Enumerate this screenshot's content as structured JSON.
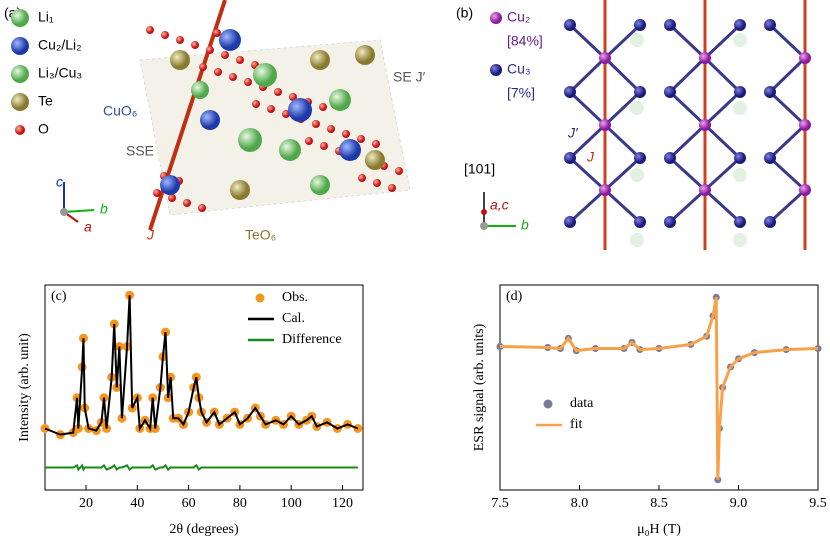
{
  "panel_a": {
    "label": "(a)",
    "legend": [
      "Li₁",
      "Cu₂/Li₂",
      "Li₃/Cu₃",
      "Te",
      "O"
    ],
    "annotations": {
      "cuo6": "CuO₆",
      "sse": "SSE",
      "j": "J",
      "teo6": "TeO₆",
      "se": "SE J′"
    },
    "axes": {
      "c": "c",
      "b": "b",
      "a": "a"
    }
  },
  "panel_b": {
    "label": "(b)",
    "legend": [
      {
        "name": "Cu₂",
        "fraction": "[84%]"
      },
      {
        "name": "Cu₃",
        "fraction": "[7%]"
      }
    ],
    "annotations": {
      "jp": "J′",
      "j": "J"
    },
    "axes": {
      "up": "[101]",
      "ac": "a,c",
      "b": "b"
    }
  },
  "chart_data": [
    {
      "type": "line",
      "panel_label": "(c)",
      "x_label": "2θ (degrees)",
      "y_label": "Intensity (arb. unit)",
      "xlim": [
        4,
        128
      ],
      "ylim": [
        0,
        100
      ],
      "xticks": [
        20,
        40,
        60,
        80,
        100,
        120
      ],
      "x": [
        4,
        10,
        15,
        16.5,
        17,
        18.5,
        19,
        19.5,
        21,
        24,
        26,
        27,
        28,
        30,
        31,
        32,
        33,
        34,
        36,
        37,
        38,
        40,
        41,
        43,
        45,
        46,
        47,
        49,
        50,
        51,
        52,
        53,
        54,
        56,
        58,
        60,
        62,
        63,
        64,
        65,
        67,
        70,
        72,
        75,
        78,
        80,
        83,
        86,
        88,
        90,
        94,
        97,
        100,
        103,
        106,
        108,
        110,
        114,
        118,
        122,
        126
      ],
      "series": [
        {
          "name": "Obs.",
          "color": "#f7941d",
          "mode": "markers",
          "values": [
            30,
            27,
            28,
            45,
            30,
            60,
            74,
            40,
            30,
            29,
            33,
            45,
            30,
            55,
            81,
            50,
            70,
            35,
            70,
            95,
            40,
            45,
            30,
            34,
            30,
            45,
            30,
            50,
            65,
            77,
            45,
            55,
            35,
            35,
            32,
            38,
            50,
            55,
            45,
            38,
            33,
            38,
            32,
            35,
            38,
            32,
            35,
            40,
            36,
            32,
            34,
            32,
            36,
            32,
            34,
            36,
            31,
            33,
            30,
            32,
            30
          ]
        },
        {
          "name": "Cal.",
          "color": "#000000",
          "mode": "line",
          "values": [
            30,
            27,
            28,
            45,
            30,
            60,
            74,
            40,
            30,
            29,
            33,
            45,
            30,
            55,
            81,
            50,
            70,
            35,
            70,
            95,
            40,
            45,
            30,
            34,
            30,
            45,
            30,
            50,
            65,
            77,
            45,
            55,
            35,
            35,
            32,
            38,
            50,
            55,
            45,
            38,
            33,
            38,
            32,
            35,
            38,
            32,
            35,
            40,
            36,
            32,
            34,
            32,
            36,
            32,
            34,
            36,
            31,
            33,
            30,
            32,
            30
          ]
        },
        {
          "name": "Difference",
          "color": "#1a8a1a",
          "mode": "line",
          "values": [
            11,
            11,
            11,
            12,
            10,
            12,
            10,
            11,
            11,
            11,
            11,
            12,
            10,
            11,
            12,
            10,
            11,
            11,
            12,
            10,
            11,
            11,
            11,
            11,
            11,
            12,
            10,
            11,
            11,
            12,
            10,
            11,
            11,
            11,
            11,
            11,
            11,
            12,
            10,
            11,
            11,
            11,
            11,
            11,
            11,
            11,
            11,
            11,
            11,
            11,
            11,
            11,
            11,
            11,
            11,
            11,
            11,
            11,
            11,
            11,
            11
          ]
        }
      ]
    },
    {
      "type": "scatter",
      "panel_label": "(d)",
      "x_label": "μ₀H (T)",
      "y_label": "ESR signal (arb. units)",
      "xlim": [
        7.5,
        9.5
      ],
      "ylim": [
        0,
        100
      ],
      "xticks": [
        7.5,
        {
          "value": 8,
          "label": "8.0"
        },
        8.5,
        {
          "value": 9,
          "label": "9.0"
        },
        9.5
      ],
      "x": [
        7.5,
        7.8,
        7.88,
        7.93,
        7.98,
        8.1,
        8.28,
        8.33,
        8.38,
        8.5,
        8.7,
        8.8,
        8.84,
        8.86,
        8.87,
        8.88,
        8.9,
        8.95,
        9.0,
        9.1,
        9.3,
        9.5
      ],
      "series": [
        {
          "name": "data",
          "color": "#7a7a9a",
          "mode": "markers",
          "values": [
            70,
            69.5,
            69,
            74,
            68,
            69,
            69,
            72,
            68.5,
            69,
            71,
            75,
            85,
            94,
            5,
            30,
            50,
            60,
            64,
            67,
            68.5,
            69
          ]
        },
        {
          "name": "fit",
          "color": "#f7a24a",
          "mode": "line",
          "values": [
            70,
            69.5,
            69,
            74,
            68,
            69,
            69,
            72,
            68.5,
            69,
            71,
            75,
            85,
            94,
            5,
            30,
            50,
            60,
            64,
            67,
            68.5,
            69
          ]
        }
      ]
    }
  ]
}
